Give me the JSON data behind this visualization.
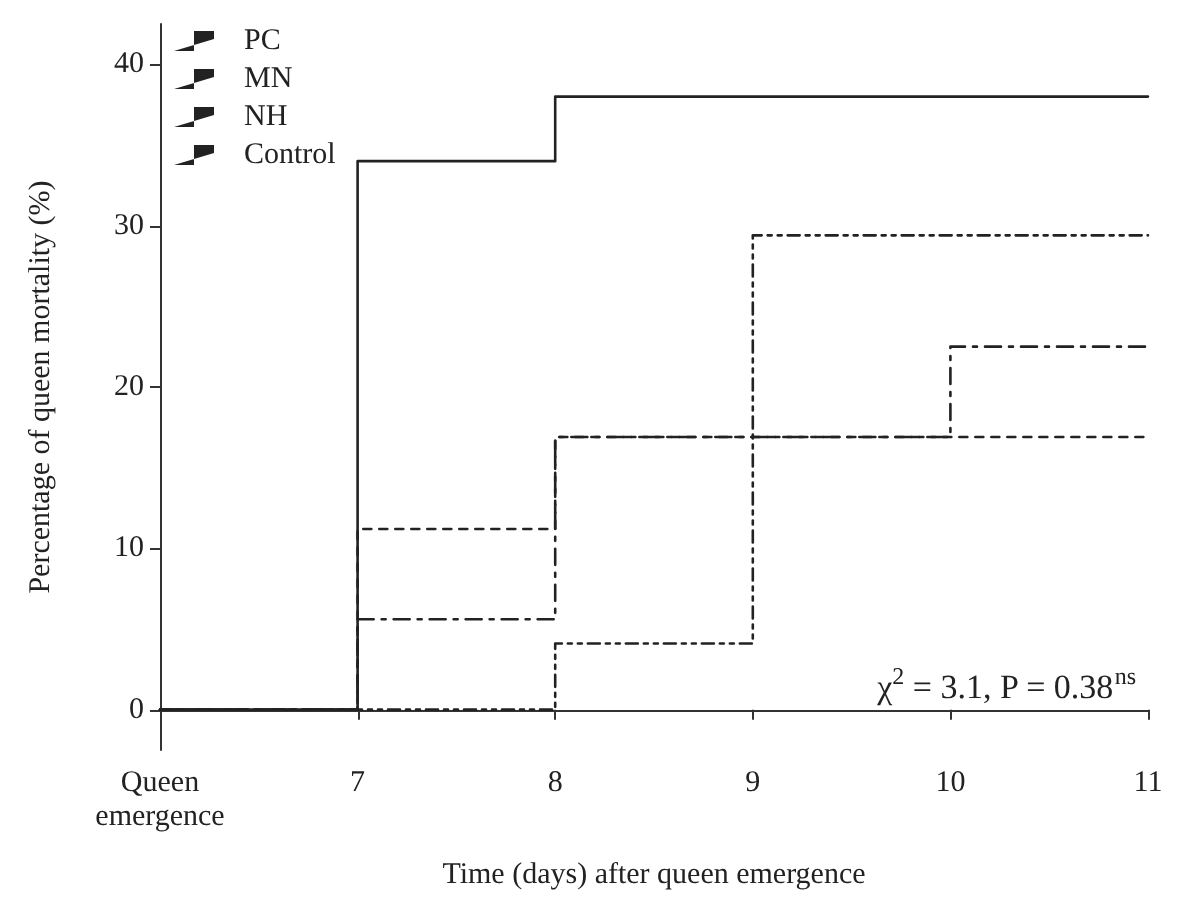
{
  "chart_data": {
    "type": "step",
    "xlabel": "Time (days) after queen emergence",
    "ylabel": "Percentage of queen mortality (%)",
    "categories": [
      "Queen\nemergence",
      "7",
      "8",
      "9",
      "10",
      "11"
    ],
    "series": [
      {
        "name": "PC",
        "color": "#222222",
        "line_style": "dotted",
        "values": [
          0,
          0,
          4.1,
          29.4,
          29.4,
          29.4
        ]
      },
      {
        "name": "MN",
        "color": "#222222",
        "line_style": "dashed",
        "values": [
          0,
          5.6,
          16.9,
          16.9,
          22.5,
          22.5
        ]
      },
      {
        "name": "NH",
        "color": "#222222",
        "line_style": "dashed",
        "values": [
          0,
          11.2,
          16.9,
          16.9,
          16.9,
          16.9
        ]
      },
      {
        "name": "Control",
        "color": "#222222",
        "line_style": "solid",
        "values": [
          0,
          34,
          38,
          38,
          38,
          38
        ]
      }
    ],
    "ylim": [
      -2.5,
      42.5
    ],
    "yticks": [
      0,
      10,
      20,
      30,
      40
    ],
    "annotations": [
      "χ$^{2}$ = 3.1, P = 0.38$^{ns}$"
    ],
    "legend": "top left",
    "grid": false,
    "marker": "none"
  }
}
